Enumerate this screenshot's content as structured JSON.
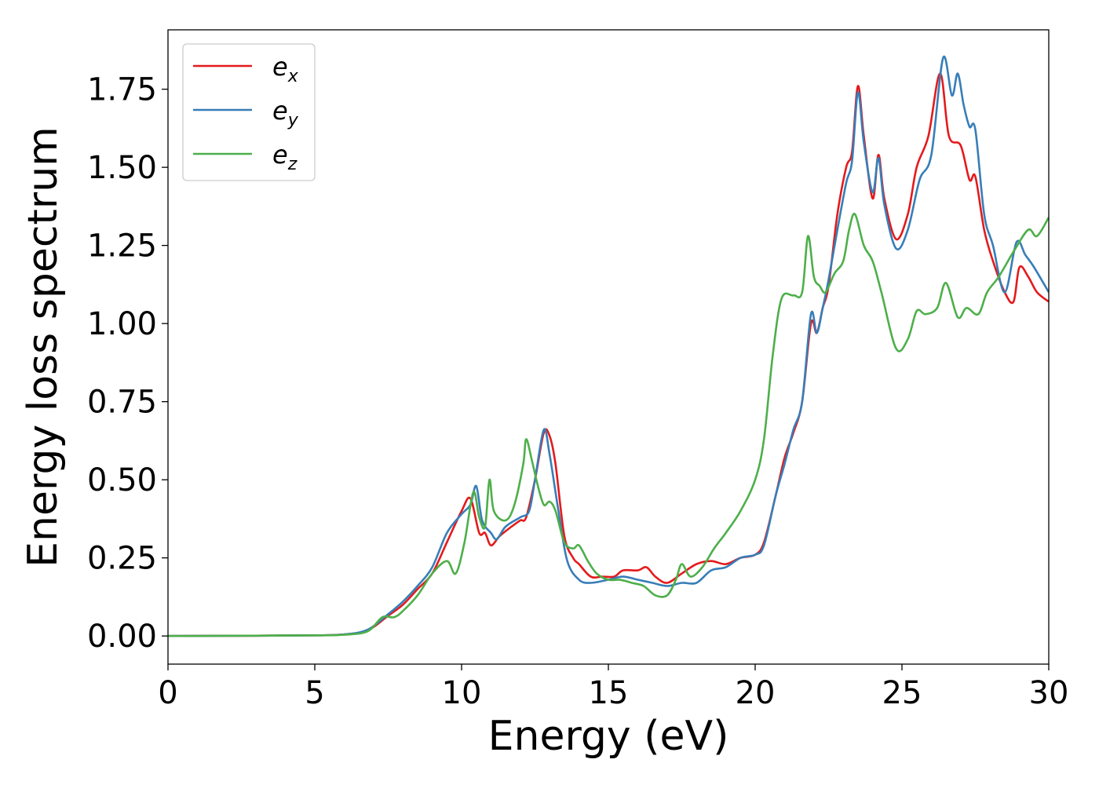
{
  "chart_data": {
    "type": "line",
    "title": "",
    "xlabel": "Energy (eV)",
    "ylabel": "Energy loss spectrum",
    "xlim": [
      0,
      30
    ],
    "ylim": [
      -0.09,
      1.94
    ],
    "xticks": [
      0,
      5,
      10,
      15,
      20,
      25,
      30
    ],
    "xtick_labels": [
      "0",
      "5",
      "10",
      "15",
      "20",
      "25",
      "30"
    ],
    "yticks": [
      0,
      0.25,
      0.5,
      0.75,
      1.0,
      1.25,
      1.5,
      1.75
    ],
    "ytick_labels": [
      "0.00",
      "0.25",
      "0.50",
      "0.75",
      "1.00",
      "1.25",
      "1.50",
      "1.75"
    ],
    "grid": false,
    "legend_position": "top-left",
    "series": [
      {
        "name": "e_x",
        "legend_base": "e",
        "legend_sub": "x",
        "color": "#e41a1c",
        "points": [
          [
            0,
            0
          ],
          [
            3,
            0.001
          ],
          [
            5,
            0.002
          ],
          [
            6,
            0.005
          ],
          [
            6.8,
            0.018
          ],
          [
            7.5,
            0.065
          ],
          [
            8,
            0.1
          ],
          [
            8.5,
            0.15
          ],
          [
            9,
            0.2
          ],
          [
            9.5,
            0.3
          ],
          [
            10,
            0.4
          ],
          [
            10.3,
            0.44
          ],
          [
            10.6,
            0.33
          ],
          [
            10.8,
            0.33
          ],
          [
            11,
            0.29
          ],
          [
            11.3,
            0.32
          ],
          [
            11.7,
            0.35
          ],
          [
            12,
            0.37
          ],
          [
            12.2,
            0.38
          ],
          [
            12.5,
            0.5
          ],
          [
            12.8,
            0.65
          ],
          [
            13,
            0.64
          ],
          [
            13.2,
            0.55
          ],
          [
            13.5,
            0.32
          ],
          [
            13.8,
            0.25
          ],
          [
            14,
            0.23
          ],
          [
            14.4,
            0.19
          ],
          [
            14.8,
            0.19
          ],
          [
            15.2,
            0.19
          ],
          [
            15.5,
            0.21
          ],
          [
            16,
            0.21
          ],
          [
            16.3,
            0.22
          ],
          [
            16.6,
            0.19
          ],
          [
            17,
            0.17
          ],
          [
            17.5,
            0.2
          ],
          [
            18,
            0.23
          ],
          [
            18.5,
            0.24
          ],
          [
            19,
            0.23
          ],
          [
            19.5,
            0.25
          ],
          [
            20,
            0.26
          ],
          [
            20.3,
            0.3
          ],
          [
            20.7,
            0.45
          ],
          [
            21,
            0.57
          ],
          [
            21.3,
            0.65
          ],
          [
            21.6,
            0.75
          ],
          [
            21.9,
            1.0
          ],
          [
            22.1,
            0.97
          ],
          [
            22.3,
            1.05
          ],
          [
            22.5,
            1.12
          ],
          [
            22.8,
            1.35
          ],
          [
            23.1,
            1.5
          ],
          [
            23.3,
            1.55
          ],
          [
            23.5,
            1.76
          ],
          [
            23.7,
            1.6
          ],
          [
            24,
            1.4
          ],
          [
            24.2,
            1.54
          ],
          [
            24.4,
            1.4
          ],
          [
            24.8,
            1.27
          ],
          [
            25.2,
            1.35
          ],
          [
            25.5,
            1.5
          ],
          [
            25.9,
            1.6
          ],
          [
            26.3,
            1.8
          ],
          [
            26.6,
            1.6
          ],
          [
            27,
            1.57
          ],
          [
            27.3,
            1.46
          ],
          [
            27.5,
            1.47
          ],
          [
            27.8,
            1.3
          ],
          [
            28.1,
            1.2
          ],
          [
            28.5,
            1.1
          ],
          [
            28.8,
            1.07
          ],
          [
            29,
            1.18
          ],
          [
            29.3,
            1.15
          ],
          [
            29.6,
            1.1
          ],
          [
            30,
            1.07
          ]
        ]
      },
      {
        "name": "e_y",
        "legend_base": "e",
        "legend_sub": "y",
        "color": "#377eb8",
        "points": [
          [
            0,
            0
          ],
          [
            3,
            0.001
          ],
          [
            5,
            0.002
          ],
          [
            6,
            0.005
          ],
          [
            6.8,
            0.02
          ],
          [
            7.5,
            0.07
          ],
          [
            8,
            0.11
          ],
          [
            8.5,
            0.16
          ],
          [
            9,
            0.22
          ],
          [
            9.5,
            0.33
          ],
          [
            10,
            0.39
          ],
          [
            10.3,
            0.42
          ],
          [
            10.5,
            0.48
          ],
          [
            10.7,
            0.37
          ],
          [
            11,
            0.33
          ],
          [
            11.2,
            0.31
          ],
          [
            11.5,
            0.35
          ],
          [
            12,
            0.38
          ],
          [
            12.3,
            0.4
          ],
          [
            12.5,
            0.5
          ],
          [
            12.8,
            0.66
          ],
          [
            13,
            0.58
          ],
          [
            13.3,
            0.4
          ],
          [
            13.6,
            0.24
          ],
          [
            14,
            0.18
          ],
          [
            14.4,
            0.17
          ],
          [
            15,
            0.18
          ],
          [
            15.5,
            0.19
          ],
          [
            16,
            0.18
          ],
          [
            16.5,
            0.17
          ],
          [
            17,
            0.16
          ],
          [
            17.5,
            0.17
          ],
          [
            18,
            0.17
          ],
          [
            18.5,
            0.21
          ],
          [
            19,
            0.22
          ],
          [
            19.5,
            0.25
          ],
          [
            20,
            0.26
          ],
          [
            20.3,
            0.29
          ],
          [
            20.7,
            0.45
          ],
          [
            21,
            0.55
          ],
          [
            21.3,
            0.66
          ],
          [
            21.6,
            0.75
          ],
          [
            21.9,
            1.03
          ],
          [
            22.1,
            0.97
          ],
          [
            22.3,
            1.05
          ],
          [
            22.5,
            1.14
          ],
          [
            22.8,
            1.3
          ],
          [
            23.1,
            1.45
          ],
          [
            23.3,
            1.52
          ],
          [
            23.5,
            1.74
          ],
          [
            23.7,
            1.58
          ],
          [
            24,
            1.42
          ],
          [
            24.2,
            1.53
          ],
          [
            24.4,
            1.38
          ],
          [
            24.8,
            1.24
          ],
          [
            25.2,
            1.3
          ],
          [
            25.6,
            1.46
          ],
          [
            26,
            1.54
          ],
          [
            26.4,
            1.85
          ],
          [
            26.7,
            1.73
          ],
          [
            26.9,
            1.8
          ],
          [
            27.1,
            1.7
          ],
          [
            27.3,
            1.63
          ],
          [
            27.5,
            1.62
          ],
          [
            27.8,
            1.35
          ],
          [
            28.1,
            1.25
          ],
          [
            28.5,
            1.1
          ],
          [
            28.9,
            1.26
          ],
          [
            29.2,
            1.22
          ],
          [
            29.5,
            1.18
          ],
          [
            30,
            1.1
          ]
        ]
      },
      {
        "name": "e_z",
        "legend_base": "e",
        "legend_sub": "z",
        "color": "#4daf4a",
        "points": [
          [
            0,
            0
          ],
          [
            3,
            0.001
          ],
          [
            5,
            0.002
          ],
          [
            6,
            0.004
          ],
          [
            6.8,
            0.015
          ],
          [
            7.3,
            0.06
          ],
          [
            7.7,
            0.06
          ],
          [
            8,
            0.08
          ],
          [
            8.5,
            0.13
          ],
          [
            9,
            0.2
          ],
          [
            9.5,
            0.24
          ],
          [
            9.8,
            0.2
          ],
          [
            10.1,
            0.3
          ],
          [
            10.4,
            0.46
          ],
          [
            10.6,
            0.38
          ],
          [
            10.8,
            0.35
          ],
          [
            10.95,
            0.5
          ],
          [
            11.1,
            0.4
          ],
          [
            11.5,
            0.37
          ],
          [
            11.8,
            0.42
          ],
          [
            12.1,
            0.55
          ],
          [
            12.2,
            0.63
          ],
          [
            12.4,
            0.56
          ],
          [
            12.6,
            0.48
          ],
          [
            12.8,
            0.42
          ],
          [
            13,
            0.43
          ],
          [
            13.2,
            0.4
          ],
          [
            13.5,
            0.3
          ],
          [
            13.8,
            0.28
          ],
          [
            14,
            0.29
          ],
          [
            14.3,
            0.24
          ],
          [
            14.6,
            0.2
          ],
          [
            15,
            0.18
          ],
          [
            15.4,
            0.18
          ],
          [
            15.8,
            0.17
          ],
          [
            16.2,
            0.16
          ],
          [
            16.6,
            0.13
          ],
          [
            17,
            0.13
          ],
          [
            17.3,
            0.18
          ],
          [
            17.5,
            0.23
          ],
          [
            17.8,
            0.19
          ],
          [
            18.2,
            0.22
          ],
          [
            18.6,
            0.28
          ],
          [
            19,
            0.33
          ],
          [
            19.5,
            0.4
          ],
          [
            20,
            0.5
          ],
          [
            20.3,
            0.63
          ],
          [
            20.6,
            0.9
          ],
          [
            20.9,
            1.08
          ],
          [
            21.3,
            1.09
          ],
          [
            21.6,
            1.1
          ],
          [
            21.8,
            1.28
          ],
          [
            22,
            1.15
          ],
          [
            22.2,
            1.12
          ],
          [
            22.4,
            1.1
          ],
          [
            22.7,
            1.16
          ],
          [
            23,
            1.2
          ],
          [
            23.2,
            1.3
          ],
          [
            23.4,
            1.35
          ],
          [
            23.7,
            1.25
          ],
          [
            24,
            1.2
          ],
          [
            24.3,
            1.1
          ],
          [
            24.8,
            0.92
          ],
          [
            25.2,
            0.95
          ],
          [
            25.5,
            1.04
          ],
          [
            25.8,
            1.03
          ],
          [
            26.2,
            1.05
          ],
          [
            26.5,
            1.13
          ],
          [
            26.9,
            1.02
          ],
          [
            27.2,
            1.05
          ],
          [
            27.6,
            1.03
          ],
          [
            27.9,
            1.1
          ],
          [
            28.3,
            1.15
          ],
          [
            28.8,
            1.23
          ],
          [
            29.3,
            1.3
          ],
          [
            29.6,
            1.28
          ],
          [
            30,
            1.34
          ]
        ]
      }
    ]
  }
}
